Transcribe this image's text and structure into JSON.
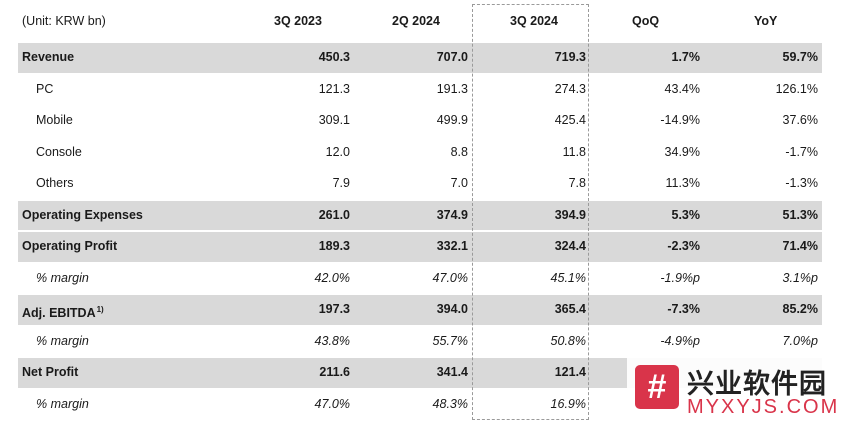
{
  "table": {
    "unit_label": "(Unit: KRW bn)",
    "columns": [
      "3Q 2023",
      "2Q 2024",
      "3Q 2024",
      "QoQ",
      "YoY"
    ],
    "rows": [
      {
        "label": "Revenue",
        "values": [
          "450.3",
          "707.0",
          "719.3",
          "1.7%",
          "59.7%"
        ],
        "style": "bold-shaded"
      },
      {
        "label": "PC",
        "values": [
          "121.3",
          "191.3",
          "274.3",
          "43.4%",
          "126.1%"
        ],
        "style": "indent"
      },
      {
        "label": "Mobile",
        "values": [
          "309.1",
          "499.9",
          "425.4",
          "-14.9%",
          "37.6%"
        ],
        "style": "indent"
      },
      {
        "label": "Console",
        "values": [
          "12.0",
          "8.8",
          "11.8",
          "34.9%",
          "-1.7%"
        ],
        "style": "indent"
      },
      {
        "label": "Others",
        "values": [
          "7.9",
          "7.0",
          "7.8",
          "11.3%",
          "-1.3%"
        ],
        "style": "indent"
      },
      {
        "label": "Operating Expenses",
        "values": [
          "261.0",
          "374.9",
          "394.9",
          "5.3%",
          "51.3%"
        ],
        "style": "bold-shaded"
      },
      {
        "label": "Operating Profit",
        "values": [
          "189.3",
          "332.1",
          "324.4",
          "-2.3%",
          "71.4%"
        ],
        "style": "bold-shaded"
      },
      {
        "label": "% margin",
        "values": [
          "42.0%",
          "47.0%",
          "45.1%",
          "-1.9%p",
          "3.1%p"
        ],
        "style": "italic"
      },
      {
        "label": "Adj. EBITDA",
        "sup": "1)",
        "values": [
          "197.3",
          "394.0",
          "365.4",
          "-7.3%",
          "85.2%"
        ],
        "style": "bold-shaded"
      },
      {
        "label": "% margin",
        "values": [
          "43.8%",
          "55.7%",
          "50.8%",
          "-4.9%p",
          "7.0%p"
        ],
        "style": "italic"
      },
      {
        "label": "Net Profit",
        "values": [
          "211.6",
          "341.4",
          "121.4",
          "",
          ""
        ],
        "style": "bold-shaded"
      },
      {
        "label": "% margin",
        "values": [
          "47.0%",
          "48.3%",
          "16.9%",
          "",
          ""
        ],
        "style": "italic"
      }
    ]
  },
  "watermark": {
    "logo_glyph": "#",
    "chinese_text": "兴业软件园",
    "english_text": "MYXYJS.COM"
  },
  "colors": {
    "shade": "#d9d9d9",
    "watermark_red": "#d9344a"
  }
}
